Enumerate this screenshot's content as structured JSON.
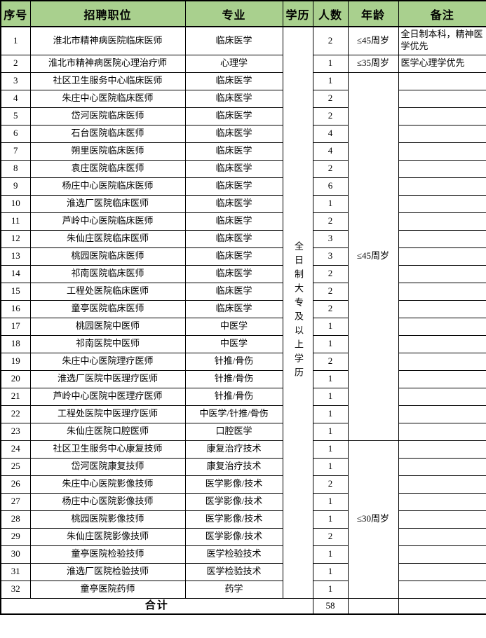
{
  "table": {
    "headers": [
      "序号",
      "招聘职位",
      "专业",
      "学历",
      "人数",
      "年龄",
      "备注"
    ],
    "education_merged": "全日制大专及以上学历",
    "age_groups": [
      {
        "label": "≤45周岁",
        "from_row": 3,
        "to_row": 23
      },
      {
        "label": "≤30周岁",
        "from_row": 24,
        "to_row": 32
      }
    ],
    "rows": [
      {
        "no": "1",
        "position": "淮北市精神病医院临床医师",
        "major": "临床医学",
        "count": "2",
        "age": "≤45周岁",
        "note": "全日制本科，精神医学优先"
      },
      {
        "no": "2",
        "position": "淮北市精神病医院心理治疗师",
        "major": "心理学",
        "count": "1",
        "age": "≤35周岁",
        "note": "医学心理学优先"
      },
      {
        "no": "3",
        "position": "社区卫生服务中心临床医师",
        "major": "临床医学",
        "count": "1",
        "note": ""
      },
      {
        "no": "4",
        "position": "朱庄中心医院临床医师",
        "major": "临床医学",
        "count": "2",
        "note": ""
      },
      {
        "no": "5",
        "position": "岱河医院临床医师",
        "major": "临床医学",
        "count": "2",
        "note": ""
      },
      {
        "no": "6",
        "position": "石台医院临床医师",
        "major": "临床医学",
        "count": "4",
        "note": ""
      },
      {
        "no": "7",
        "position": "朔里医院临床医师",
        "major": "临床医学",
        "count": "4",
        "note": ""
      },
      {
        "no": "8",
        "position": "袁庄医院临床医师",
        "major": "临床医学",
        "count": "2",
        "note": ""
      },
      {
        "no": "9",
        "position": "杨庄中心医院临床医师",
        "major": "临床医学",
        "count": "6",
        "note": ""
      },
      {
        "no": "10",
        "position": "淮选厂医院临床医师",
        "major": "临床医学",
        "count": "1",
        "note": ""
      },
      {
        "no": "11",
        "position": "芦岭中心医院临床医师",
        "major": "临床医学",
        "count": "2",
        "note": ""
      },
      {
        "no": "12",
        "position": "朱仙庄医院临床医师",
        "major": "临床医学",
        "count": "3",
        "note": ""
      },
      {
        "no": "13",
        "position": "桃园医院临床医师",
        "major": "临床医学",
        "count": "3",
        "note": ""
      },
      {
        "no": "14",
        "position": "祁南医院临床医师",
        "major": "临床医学",
        "count": "2",
        "note": ""
      },
      {
        "no": "15",
        "position": "工程处医院临床医师",
        "major": "临床医学",
        "count": "2",
        "note": ""
      },
      {
        "no": "16",
        "position": "童亭医院临床医师",
        "major": "临床医学",
        "count": "2",
        "note": ""
      },
      {
        "no": "17",
        "position": "桃园医院中医师",
        "major": "中医学",
        "count": "1",
        "note": ""
      },
      {
        "no": "18",
        "position": "祁南医院中医师",
        "major": "中医学",
        "count": "1",
        "note": ""
      },
      {
        "no": "19",
        "position": "朱庄中心医院理疗医师",
        "major": "针推/骨伤",
        "count": "2",
        "note": ""
      },
      {
        "no": "20",
        "position": "淮选厂医院中医理疗医师",
        "major": "针推/骨伤",
        "count": "1",
        "note": ""
      },
      {
        "no": "21",
        "position": "芦岭中心医院中医理疗医师",
        "major": "针推/骨伤",
        "count": "1",
        "note": ""
      },
      {
        "no": "22",
        "position": "工程处医院中医理疗医师",
        "major": "中医学/针推/骨伤",
        "count": "1",
        "note": ""
      },
      {
        "no": "23",
        "position": "朱仙庄医院口腔医师",
        "major": "口腔医学",
        "count": "1",
        "note": ""
      },
      {
        "no": "24",
        "position": "社区卫生服务中心康复技师",
        "major": "康复治疗技术",
        "count": "1",
        "note": ""
      },
      {
        "no": "25",
        "position": "岱河医院康复技师",
        "major": "康复治疗技术",
        "count": "1",
        "note": ""
      },
      {
        "no": "26",
        "position": "朱庄中心医院影像技师",
        "major": "医学影像/技术",
        "count": "2",
        "note": ""
      },
      {
        "no": "27",
        "position": "杨庄中心医院影像技师",
        "major": "医学影像/技术",
        "count": "1",
        "note": ""
      },
      {
        "no": "28",
        "position": "桃园医院影像技师",
        "major": "医学影像/技术",
        "count": "1",
        "note": ""
      },
      {
        "no": "29",
        "position": "朱仙庄医院影像技师",
        "major": "医学影像/技术",
        "count": "2",
        "note": ""
      },
      {
        "no": "30",
        "position": "童亭医院检验技师",
        "major": "医学检验技术",
        "count": "1",
        "note": ""
      },
      {
        "no": "31",
        "position": "淮选厂医院检验技师",
        "major": "医学检验技术",
        "count": "1",
        "note": ""
      },
      {
        "no": "32",
        "position": "童亭医院药师",
        "major": "药学",
        "count": "1",
        "note": ""
      }
    ],
    "footer": {
      "label": "合计",
      "total": "58"
    }
  },
  "colors": {
    "header_bg": "#A9D08E",
    "border": "#000000"
  }
}
